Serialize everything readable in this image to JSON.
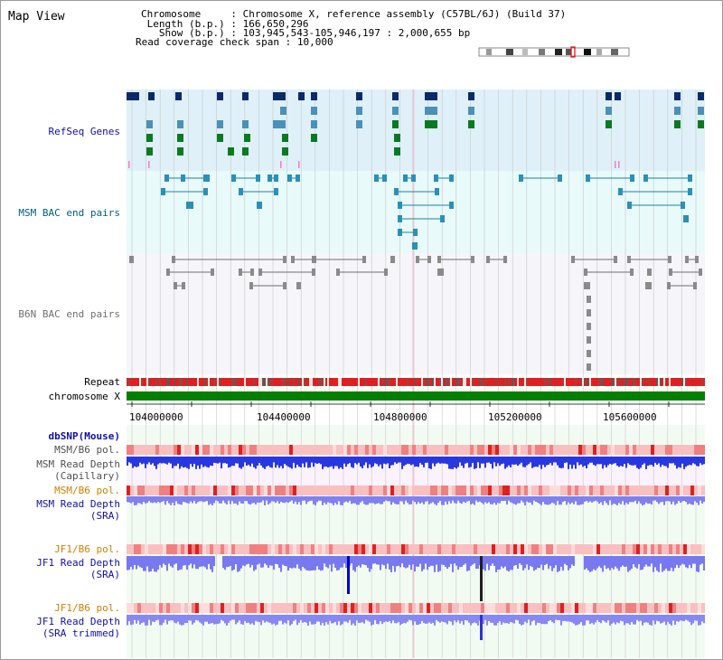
{
  "title": "Map View",
  "header": {
    "chromosome_key": "Chromosome",
    "chromosome_val": "Chromosome X, reference assembly (C57BL/6J) (Build 37)",
    "length_key": "Length (b.p.)",
    "length_val": "166,650,296",
    "show_key": "Show (b.p.)",
    "show_val": "103,945,543-105,946,197 : 2,000,655 bp",
    "span_key": "Read coverage check span",
    "span_val": "10,000"
  },
  "tracks": {
    "refseq": "RefSeq Genes",
    "msm_bac": "MSM BAC end pairs",
    "b6n_bac": "B6N BAC end pairs",
    "repeat": "Repeat",
    "chromosome": "chromosome X",
    "dbsnp": "dbSNP(Mouse)",
    "msm_b6_pol_1": "MSM/B6 pol.",
    "msm_depth_cap_1": "MSM Read Depth",
    "msm_depth_cap_2": "(Capillary)",
    "msm_b6_pol_2": "MSM/B6 pol.",
    "msm_depth_sra_1": "MSM Read Depth",
    "msm_depth_sra_2": "(SRA)",
    "jf1_b6_pol_1": "JF1/B6 pol.",
    "jf1_depth_sra_1": "JF1 Read Depth",
    "jf1_depth_sra_2": "(SRA)",
    "jf1_b6_pol_2": "JF1/B6 pol.",
    "jf1_depth_trim_1": "JF1 Read Depth",
    "jf1_depth_trim_2": "(SRA trimmed)"
  },
  "axis": {
    "ticks": [
      "104000000",
      "104400000",
      "104800000",
      "105200000",
      "105600000"
    ]
  },
  "colors": {
    "refseq_bg": "#dff0f8",
    "msm_bg": "#e8fafa",
    "b6n_bg": "#f5f5fa",
    "gene_dark": "#0a2a6a",
    "gene_mid": "#4a90b8",
    "gene_green": "#0a7a20",
    "chromosome": "#008000",
    "repeat": "#e02020",
    "depth": "#2838e0",
    "label_blue": "#1010a0",
    "label_teal": "#006080",
    "label_gray": "#606060",
    "label_orange": "#d08000"
  }
}
